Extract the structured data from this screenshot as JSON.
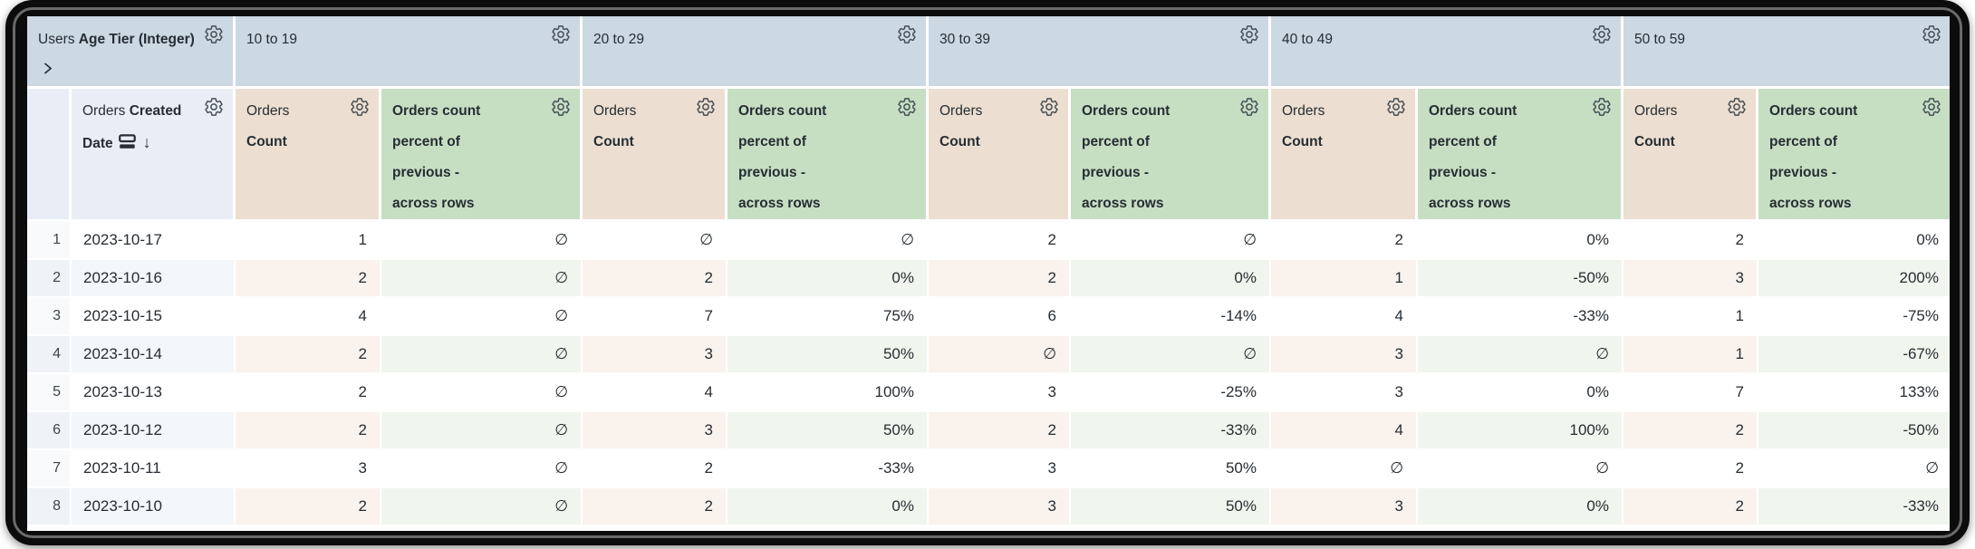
{
  "colors": {
    "frame_bg": "#0c0c0c",
    "frame_ring": "#6a6a6a",
    "text": "#262d33",
    "pivot_header_bg": "#ccd8e2",
    "dim_header_bg": "#e9eef6",
    "count_header_bg": "#ecdfd1",
    "pct_header_bg": "#c6dfc3",
    "num_base_bg": "#f8fafc",
    "stripe_num": "#eff3f7",
    "stripe_dim": "#f3f6fa",
    "stripe_count": "#faf2ec",
    "stripe_pct": "#f0f6ee"
  },
  "table": {
    "corner_header": {
      "view": "Users",
      "field": "Age Tier (Integer)"
    },
    "row_dimension": {
      "view": "Orders",
      "field": "Created Date",
      "sort_arrow": "↓"
    },
    "pivot_values": [
      "10 to 19",
      "20 to 29",
      "30 to 39",
      "40 to 49",
      "50 to 59"
    ],
    "measure_count": {
      "view": "Orders",
      "field": "Count"
    },
    "measure_pct": {
      "name": "Orders count percent of previous - across rows",
      "name_wrapped": "Orders count\npercent of\nprevious -\nacross rows"
    },
    "rows": [
      {
        "index": "1",
        "date": "2023-10-17",
        "values": [
          [
            "1",
            "∅"
          ],
          [
            "∅",
            "∅"
          ],
          [
            "2",
            "∅"
          ],
          [
            "2",
            "0%"
          ],
          [
            "2",
            "0%"
          ]
        ]
      },
      {
        "index": "2",
        "date": "2023-10-16",
        "values": [
          [
            "2",
            "∅"
          ],
          [
            "2",
            "0%"
          ],
          [
            "2",
            "0%"
          ],
          [
            "1",
            "-50%"
          ],
          [
            "3",
            "200%"
          ]
        ]
      },
      {
        "index": "3",
        "date": "2023-10-15",
        "values": [
          [
            "4",
            "∅"
          ],
          [
            "7",
            "75%"
          ],
          [
            "6",
            "-14%"
          ],
          [
            "4",
            "-33%"
          ],
          [
            "1",
            "-75%"
          ]
        ]
      },
      {
        "index": "4",
        "date": "2023-10-14",
        "values": [
          [
            "2",
            "∅"
          ],
          [
            "3",
            "50%"
          ],
          [
            "∅",
            "∅"
          ],
          [
            "3",
            "∅"
          ],
          [
            "1",
            "-67%"
          ]
        ]
      },
      {
        "index": "5",
        "date": "2023-10-13",
        "values": [
          [
            "2",
            "∅"
          ],
          [
            "4",
            "100%"
          ],
          [
            "3",
            "-25%"
          ],
          [
            "3",
            "0%"
          ],
          [
            "7",
            "133%"
          ]
        ]
      },
      {
        "index": "6",
        "date": "2023-10-12",
        "values": [
          [
            "2",
            "∅"
          ],
          [
            "3",
            "50%"
          ],
          [
            "2",
            "-33%"
          ],
          [
            "4",
            "100%"
          ],
          [
            "2",
            "-50%"
          ]
        ]
      },
      {
        "index": "7",
        "date": "2023-10-11",
        "values": [
          [
            "3",
            "∅"
          ],
          [
            "2",
            "-33%"
          ],
          [
            "3",
            "50%"
          ],
          [
            "∅",
            "∅"
          ],
          [
            "2",
            "∅"
          ]
        ]
      },
      {
        "index": "8",
        "date": "2023-10-10",
        "values": [
          [
            "2",
            "∅"
          ],
          [
            "2",
            "0%"
          ],
          [
            "3",
            "50%"
          ],
          [
            "3",
            "0%"
          ],
          [
            "2",
            "-33%"
          ]
        ]
      }
    ]
  }
}
